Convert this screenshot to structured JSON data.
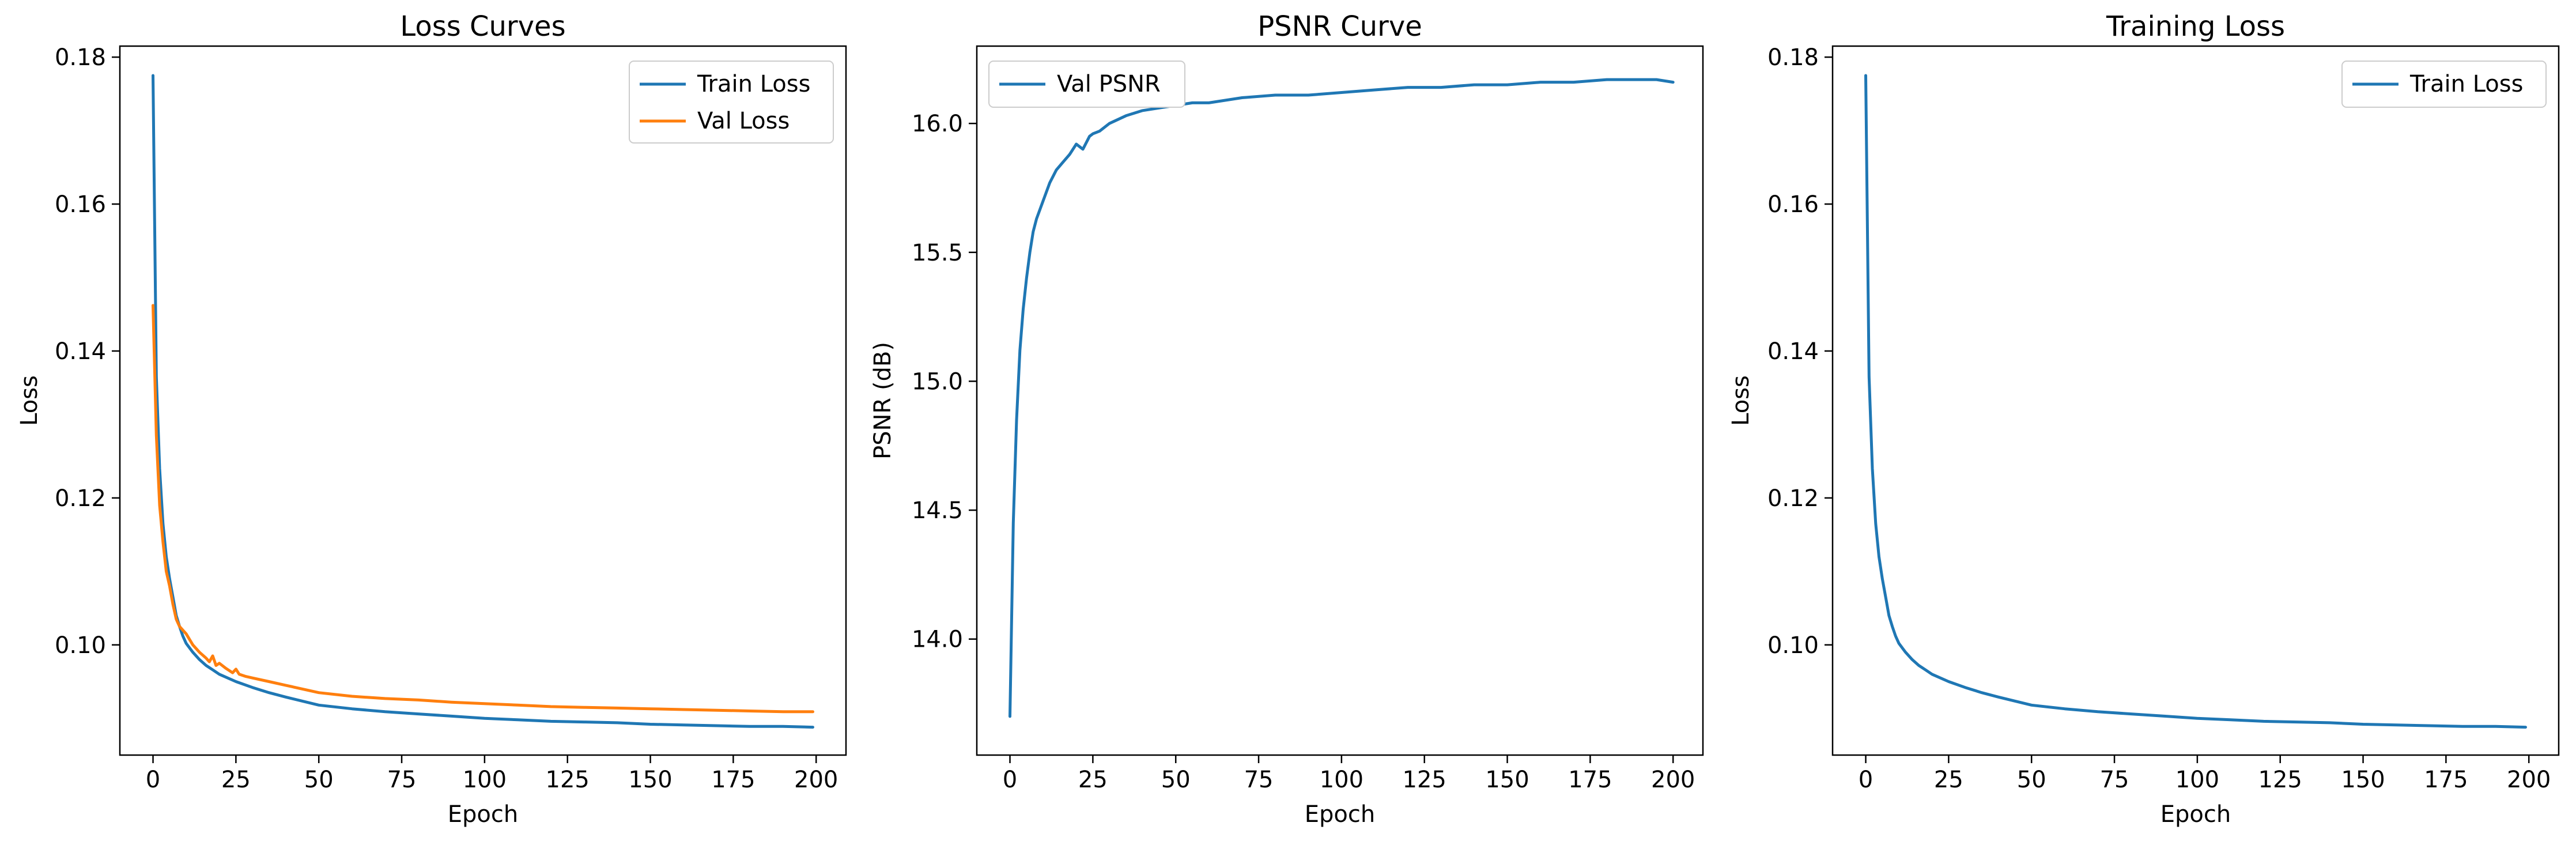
{
  "colors": {
    "train": "#1f77b4",
    "val": "#ff7f0e",
    "axes": "#000000",
    "background": "#ffffff"
  },
  "chart_data": [
    {
      "type": "line",
      "title": "Loss Curves",
      "xlabel": "Epoch",
      "ylabel": "Loss",
      "xlim": [
        -10,
        209
      ],
      "ylim": [
        0.085,
        0.1815
      ],
      "xticks": [
        0,
        25,
        50,
        75,
        100,
        125,
        150,
        175,
        200
      ],
      "yticks": [
        0.1,
        0.12,
        0.14,
        0.16,
        0.18
      ],
      "ytick_labels": [
        "0.10",
        "0.12",
        "0.14",
        "0.16",
        "0.18"
      ],
      "grid": false,
      "legend": "top-right",
      "series": [
        {
          "name": "Train Loss",
          "color": "#1f77b4",
          "x": [
            0,
            1,
            2,
            3,
            4,
            5,
            6,
            7,
            8,
            9,
            10,
            12,
            14,
            16,
            18,
            20,
            25,
            30,
            35,
            40,
            50,
            60,
            70,
            80,
            90,
            100,
            110,
            120,
            130,
            140,
            150,
            160,
            170,
            180,
            190,
            199
          ],
          "y": [
            0.1775,
            0.1365,
            0.124,
            0.1165,
            0.112,
            0.109,
            0.1065,
            0.104,
            0.1025,
            0.1012,
            0.1002,
            0.099,
            0.098,
            0.0972,
            0.0966,
            0.096,
            0.095,
            0.0942,
            0.0935,
            0.0929,
            0.0918,
            0.0913,
            0.0909,
            0.0906,
            0.0903,
            0.09,
            0.0898,
            0.0896,
            0.0895,
            0.0894,
            0.0892,
            0.0891,
            0.089,
            0.0889,
            0.0889,
            0.0888
          ]
        },
        {
          "name": "Val Loss",
          "color": "#ff7f0e",
          "x": [
            0,
            1,
            2,
            3,
            4,
            5,
            6,
            7,
            8,
            9,
            10,
            12,
            14,
            16,
            17,
            18,
            19,
            20,
            22,
            24,
            25,
            26,
            28,
            30,
            35,
            40,
            50,
            60,
            70,
            80,
            90,
            100,
            110,
            120,
            130,
            140,
            150,
            160,
            170,
            180,
            190,
            199
          ],
          "y": [
            0.1462,
            0.1285,
            0.119,
            0.114,
            0.11,
            0.108,
            0.1055,
            0.1035,
            0.1025,
            0.102,
            0.1015,
            0.1,
            0.099,
            0.0982,
            0.0977,
            0.0985,
            0.0972,
            0.0975,
            0.0968,
            0.0962,
            0.0967,
            0.096,
            0.0957,
            0.0955,
            0.095,
            0.0945,
            0.0935,
            0.093,
            0.0927,
            0.0925,
            0.0922,
            0.092,
            0.0918,
            0.0916,
            0.0915,
            0.0914,
            0.0913,
            0.0912,
            0.0911,
            0.091,
            0.0909,
            0.0909
          ]
        }
      ]
    },
    {
      "type": "line",
      "title": "PSNR Curve",
      "xlabel": "Epoch",
      "ylabel": "PSNR (dB)",
      "xlim": [
        -10,
        209
      ],
      "ylim": [
        13.55,
        16.3
      ],
      "xticks": [
        0,
        25,
        50,
        75,
        100,
        125,
        150,
        175,
        200
      ],
      "yticks": [
        14.0,
        14.5,
        15.0,
        15.5,
        16.0
      ],
      "ytick_labels": [
        "14.0",
        "14.5",
        "15.0",
        "15.5",
        "16.0"
      ],
      "grid": false,
      "legend": "top-left",
      "series": [
        {
          "name": "Val PSNR",
          "color": "#1f77b4",
          "x": [
            0,
            1,
            2,
            3,
            4,
            5,
            6,
            7,
            8,
            10,
            12,
            14,
            16,
            18,
            20,
            22,
            24,
            25,
            27,
            30,
            35,
            40,
            45,
            50,
            55,
            60,
            70,
            80,
            90,
            100,
            110,
            120,
            130,
            140,
            150,
            160,
            170,
            180,
            190,
            195,
            200
          ],
          "y": [
            13.7,
            14.45,
            14.85,
            15.12,
            15.28,
            15.4,
            15.5,
            15.58,
            15.63,
            15.7,
            15.77,
            15.82,
            15.85,
            15.88,
            15.92,
            15.9,
            15.95,
            15.96,
            15.97,
            16.0,
            16.03,
            16.05,
            16.06,
            16.07,
            16.08,
            16.08,
            16.1,
            16.11,
            16.11,
            16.12,
            16.13,
            16.14,
            16.14,
            16.15,
            16.15,
            16.16,
            16.16,
            16.17,
            16.17,
            16.17,
            16.16
          ]
        }
      ]
    },
    {
      "type": "line",
      "title": "Training Loss",
      "xlabel": "Epoch",
      "ylabel": "Loss",
      "xlim": [
        -10,
        209
      ],
      "ylim": [
        0.085,
        0.1815
      ],
      "xticks": [
        0,
        25,
        50,
        75,
        100,
        125,
        150,
        175,
        200
      ],
      "yticks": [
        0.1,
        0.12,
        0.14,
        0.16,
        0.18
      ],
      "ytick_labels": [
        "0.10",
        "0.12",
        "0.14",
        "0.16",
        "0.18"
      ],
      "grid": false,
      "legend": "top-right",
      "series": [
        {
          "name": "Train Loss",
          "color": "#1f77b4",
          "x": [
            0,
            1,
            2,
            3,
            4,
            5,
            6,
            7,
            8,
            9,
            10,
            12,
            14,
            16,
            18,
            20,
            25,
            30,
            35,
            40,
            50,
            60,
            70,
            80,
            90,
            100,
            110,
            120,
            130,
            140,
            150,
            160,
            170,
            180,
            190,
            199
          ],
          "y": [
            0.1775,
            0.1365,
            0.124,
            0.1165,
            0.112,
            0.109,
            0.1065,
            0.104,
            0.1025,
            0.1012,
            0.1002,
            0.099,
            0.098,
            0.0972,
            0.0966,
            0.096,
            0.095,
            0.0942,
            0.0935,
            0.0929,
            0.0918,
            0.0913,
            0.0909,
            0.0906,
            0.0903,
            0.09,
            0.0898,
            0.0896,
            0.0895,
            0.0894,
            0.0892,
            0.0891,
            0.089,
            0.0889,
            0.0889,
            0.0888
          ]
        }
      ]
    }
  ]
}
